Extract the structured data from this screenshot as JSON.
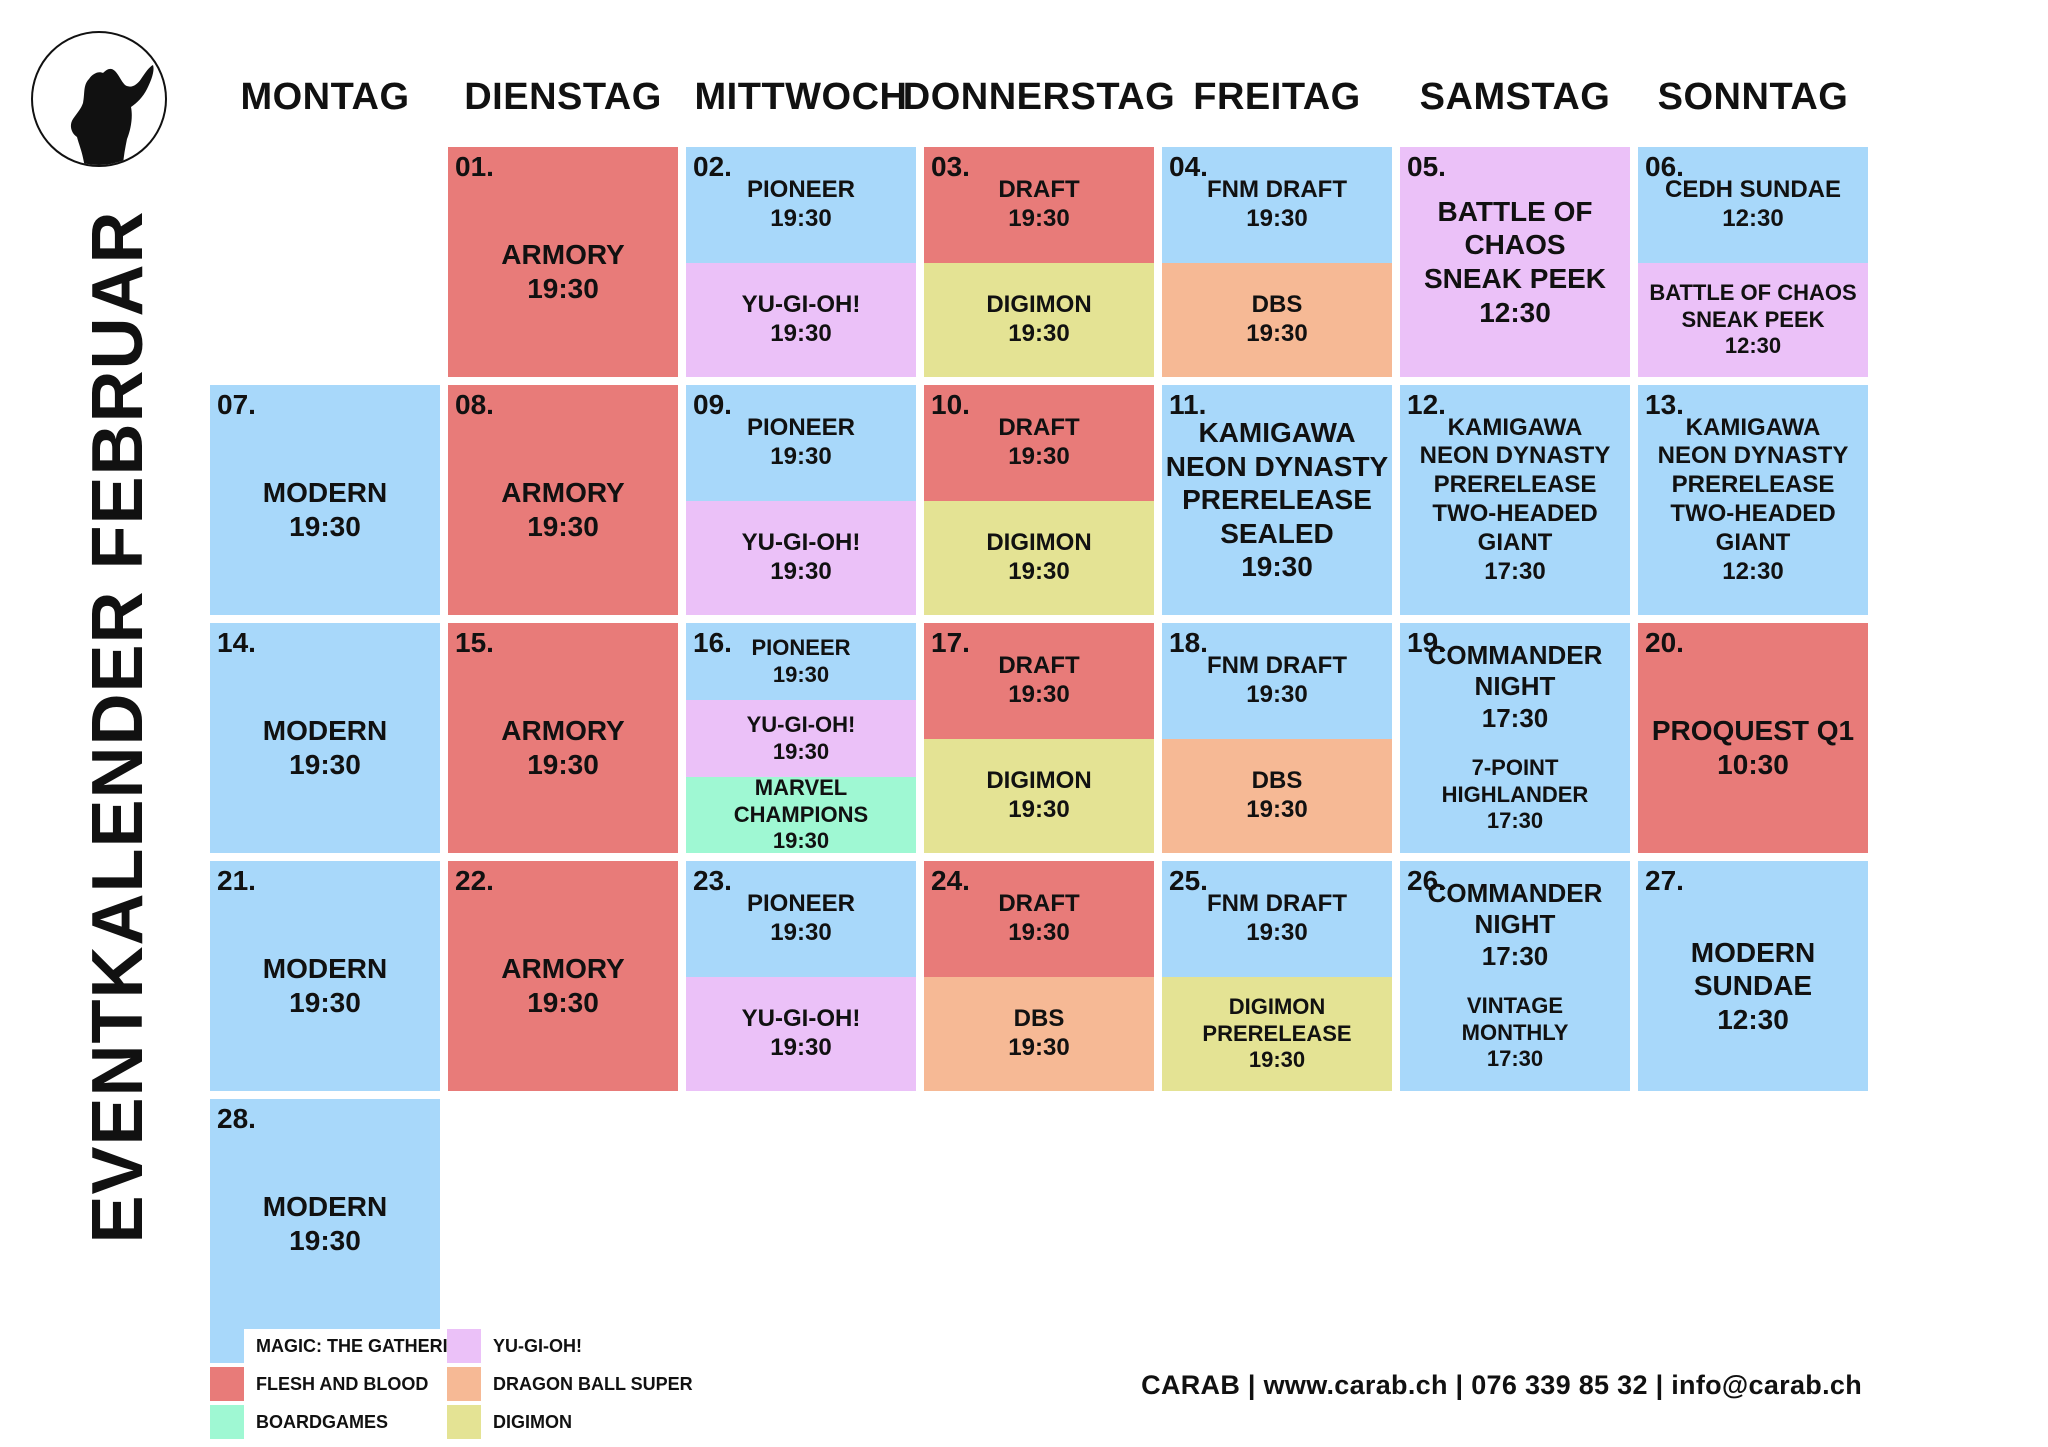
{
  "title": "EVENTKALENDER FEBRUAR",
  "weekdays": [
    "MONTAG",
    "DIENSTAG",
    "MITTWOCH",
    "DONNERSTAG",
    "FREITAG",
    "SAMSTAG",
    "SONNTAG"
  ],
  "colors": {
    "mtg": "#a8d8fa",
    "fab": "#e87b79",
    "ygo": "#ebc1f8",
    "dbs": "#f6b995",
    "dig": "#e4e394",
    "brd": "#9ff8d3"
  },
  "days": [
    {
      "num": "01.",
      "segs": [
        {
          "cat": "fab",
          "text": "ARMORY\n19:30"
        }
      ]
    },
    {
      "num": "02.",
      "segs": [
        {
          "cat": "mtg",
          "text": "PIONEER\n19:30"
        },
        {
          "cat": "ygo",
          "text": "YU-GI-OH!\n19:30"
        }
      ]
    },
    {
      "num": "03.",
      "segs": [
        {
          "cat": "fab",
          "text": "DRAFT\n19:30"
        },
        {
          "cat": "dig",
          "text": "DIGIMON\n19:30"
        }
      ]
    },
    {
      "num": "04.",
      "segs": [
        {
          "cat": "mtg",
          "text": "FNM DRAFT\n19:30"
        },
        {
          "cat": "dbs",
          "text": "DBS\n19:30"
        }
      ]
    },
    {
      "num": "05.",
      "segs": [
        {
          "cat": "ygo",
          "text": "BATTLE OF CHAOS\nSNEAK PEEK\n12:30"
        }
      ]
    },
    {
      "num": "06.",
      "segs": [
        {
          "cat": "mtg",
          "text": "CEDH SUNDAE\n12:30"
        },
        {
          "cat": "ygo",
          "text": "BATTLE OF CHAOS\nSNEAK PEEK\n12:30"
        }
      ]
    },
    {
      "num": "07.",
      "segs": [
        {
          "cat": "mtg",
          "text": "MODERN\n19:30"
        }
      ]
    },
    {
      "num": "08.",
      "segs": [
        {
          "cat": "fab",
          "text": "ARMORY\n19:30"
        }
      ]
    },
    {
      "num": "09.",
      "segs": [
        {
          "cat": "mtg",
          "text": "PIONEER\n19:30"
        },
        {
          "cat": "ygo",
          "text": "YU-GI-OH!\n19:30"
        }
      ]
    },
    {
      "num": "10.",
      "segs": [
        {
          "cat": "fab",
          "text": "DRAFT\n19:30"
        },
        {
          "cat": "dig",
          "text": "DIGIMON\n19:30"
        }
      ]
    },
    {
      "num": "11.",
      "segs": [
        {
          "cat": "mtg",
          "text": "KAMIGAWA\nNEON DYNASTY\nPRERELEASE SEALED\n19:30"
        }
      ]
    },
    {
      "num": "12.",
      "segs": [
        {
          "cat": "mtg",
          "text": "KAMIGAWA\nNEON DYNASTY\nPRERELEASE\nTWO-HEADED GIANT\n17:30"
        }
      ]
    },
    {
      "num": "13.",
      "segs": [
        {
          "cat": "mtg",
          "text": "KAMIGAWA\nNEON DYNASTY\nPRERELEASE\nTWO-HEADED GIANT\n12:30"
        }
      ]
    },
    {
      "num": "14.",
      "segs": [
        {
          "cat": "mtg",
          "text": "MODERN\n19:30"
        }
      ]
    },
    {
      "num": "15.",
      "segs": [
        {
          "cat": "fab",
          "text": "ARMORY\n19:30"
        }
      ]
    },
    {
      "num": "16.",
      "segs": [
        {
          "cat": "mtg",
          "text": "PIONEER\n19:30"
        },
        {
          "cat": "ygo",
          "text": "YU-GI-OH!\n19:30"
        },
        {
          "cat": "brd",
          "text": "MARVEL CHAMPIONS\n19:30"
        }
      ]
    },
    {
      "num": "17.",
      "segs": [
        {
          "cat": "fab",
          "text": "DRAFT\n19:30"
        },
        {
          "cat": "dig",
          "text": "DIGIMON\n19:30"
        }
      ]
    },
    {
      "num": "18.",
      "segs": [
        {
          "cat": "mtg",
          "text": "FNM DRAFT\n19:30"
        },
        {
          "cat": "dbs",
          "text": "DBS\n19:30"
        }
      ]
    },
    {
      "num": "19.",
      "segs": [
        {
          "cat": "mtg",
          "text": "COMMANDER NIGHT\n17:30"
        },
        {
          "cat": "mtg",
          "text": "7-POINT\nHIGHLANDER\n17:30"
        }
      ]
    },
    {
      "num": "20.",
      "segs": [
        {
          "cat": "fab",
          "text": "PROQUEST Q1\n10:30"
        }
      ]
    },
    {
      "num": "21.",
      "segs": [
        {
          "cat": "mtg",
          "text": "MODERN\n19:30"
        }
      ]
    },
    {
      "num": "22.",
      "segs": [
        {
          "cat": "fab",
          "text": "ARMORY\n19:30"
        }
      ]
    },
    {
      "num": "23.",
      "segs": [
        {
          "cat": "mtg",
          "text": "PIONEER\n19:30"
        },
        {
          "cat": "ygo",
          "text": "YU-GI-OH!\n19:30"
        }
      ]
    },
    {
      "num": "24.",
      "segs": [
        {
          "cat": "fab",
          "text": "DRAFT\n19:30"
        },
        {
          "cat": "dbs",
          "text": "DBS\n19:30"
        }
      ]
    },
    {
      "num": "25.",
      "segs": [
        {
          "cat": "mtg",
          "text": "FNM DRAFT\n19:30"
        },
        {
          "cat": "dig",
          "text": "DIGIMON\nPRERELEASE\n19:30"
        }
      ]
    },
    {
      "num": "26.",
      "segs": [
        {
          "cat": "mtg",
          "text": "COMMANDER NIGHT\n17:30"
        },
        {
          "cat": "mtg",
          "text": "VINTAGE\nMONTHLY\n17:30"
        }
      ]
    },
    {
      "num": "27.",
      "segs": [
        {
          "cat": "mtg",
          "text": "MODERN SUNDAE\n12:30"
        }
      ]
    },
    {
      "num": "28.",
      "segs": [
        {
          "cat": "mtg",
          "text": "MODERN\n19:30"
        }
      ]
    }
  ],
  "legend": [
    {
      "cat": "mtg",
      "label": "MAGIC: THE GATHERING"
    },
    {
      "cat": "fab",
      "label": "FLESH AND BLOOD"
    },
    {
      "cat": "brd",
      "label": "BOARDGAMES"
    },
    {
      "cat": "ygo",
      "label": "YU-GI-OH!"
    },
    {
      "cat": "dbs",
      "label": "DRAGON BALL SUPER"
    },
    {
      "cat": "dig",
      "label": "DIGIMON"
    }
  ],
  "footer": "CARAB | www.carab.ch | 076 339 85 32 | info@carab.ch"
}
